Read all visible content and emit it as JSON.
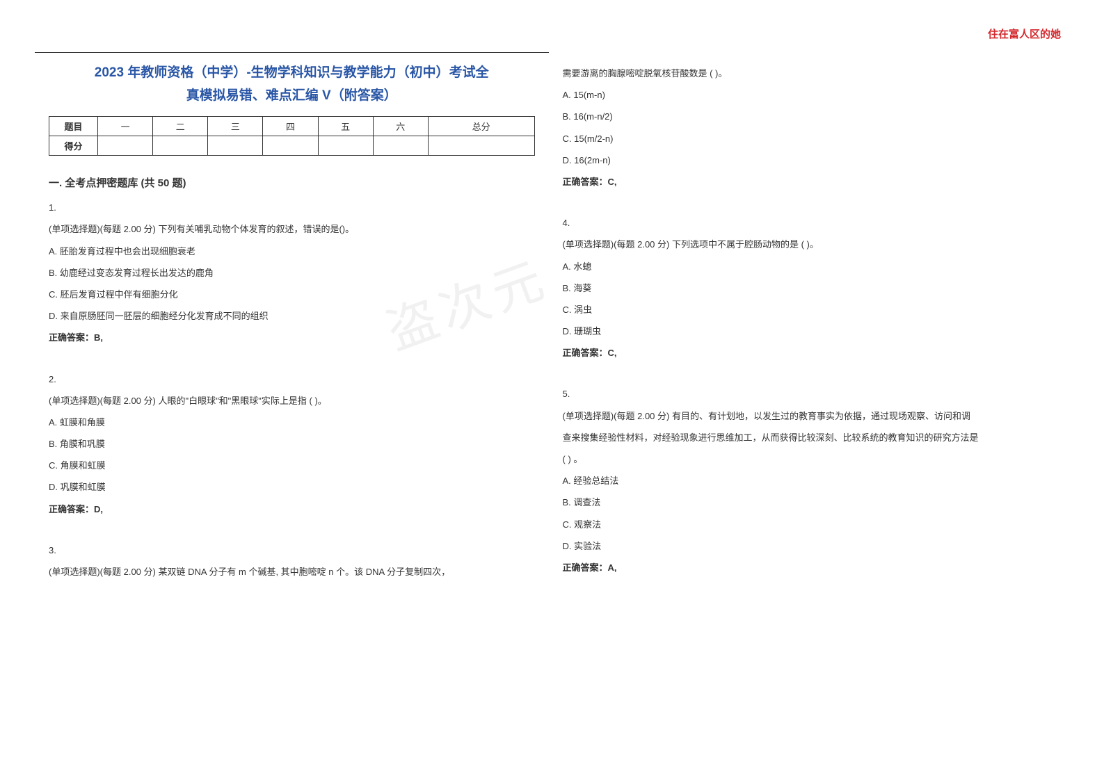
{
  "header_right": "住在富人区的她",
  "watermark": "盗次元",
  "title_line1": "2023 年教师资格（中学）-生物学科知识与教学能力（初中）考试全",
  "title_line2": "真模拟易错、难点汇编 V（附答案）",
  "score_table": {
    "row1_label": "题目",
    "cols": [
      "一",
      "二",
      "三",
      "四",
      "五",
      "六",
      "总分"
    ],
    "row2_label": "得分"
  },
  "section1_title": "一. 全考点押密题库 (共 50 题)",
  "q1": {
    "num": "1.",
    "stem": "(单项选择题)(每题 2.00 分) 下列有关哺乳动物个体发育的叙述，错误的是()。",
    "optA": "A. 胚胎发育过程中也会出现细胞衰老",
    "optB": "B. 幼鹿经过变态发育过程长出发达的鹿角",
    "optC": "C. 胚后发育过程中伴有细胞分化",
    "optD": "D. 来自原肠胚同一胚层的细胞经分化发育成不同的组织",
    "answer": "正确答案：B,"
  },
  "q2": {
    "num": "2.",
    "stem": "(单项选择题)(每题 2.00 分) 人眼的\"白眼球\"和\"黑眼球\"实际上是指 ( )。",
    "optA": "A. 虹膜和角膜",
    "optB": "B. 角膜和巩膜",
    "optC": "C. 角膜和虹膜",
    "optD": "D. 巩膜和虹膜",
    "answer": "正确答案：D,"
  },
  "q3": {
    "num": "3.",
    "stem": "(单项选择题)(每题 2.00 分) 某双链 DNA 分子有 m 个碱基, 其中胞嘧啶 n 个。该 DNA 分子复制四次，",
    "continue": "需要游离的胸腺嘧啶脱氧核苷酸数是 ( )。",
    "optA": "A. 15(m-n)",
    "optB": "B. 16(m-n/2)",
    "optC": "C. 15(m/2-n)",
    "optD": "D. 16(2m-n)",
    "answer": "正确答案：C,"
  },
  "q4": {
    "num": "4.",
    "stem": "(单项选择题)(每题 2.00 分) 下列选项中不属于腔肠动物的是 ( )。",
    "optA": "A. 水螅",
    "optB": "B. 海葵",
    "optC": "C. 涡虫",
    "optD": "D. 珊瑚虫",
    "answer": "正确答案：C,"
  },
  "q5": {
    "num": "5.",
    "stem1": "(单项选择题)(每题 2.00 分) 有目的、有计划地，以发生过的教育事实为依据，通过现场观察、访问和调",
    "stem2": "查来搜集经验性材料，对经验现象进行思维加工，从而获得比较深刻、比较系统的教育知识的研究方法是",
    "stem3": "( ) 。",
    "optA": "A. 经验总结法",
    "optB": "B. 调查法",
    "optC": "C. 观察法",
    "optD": "D. 实验法",
    "answer": "正确答案：A,"
  }
}
